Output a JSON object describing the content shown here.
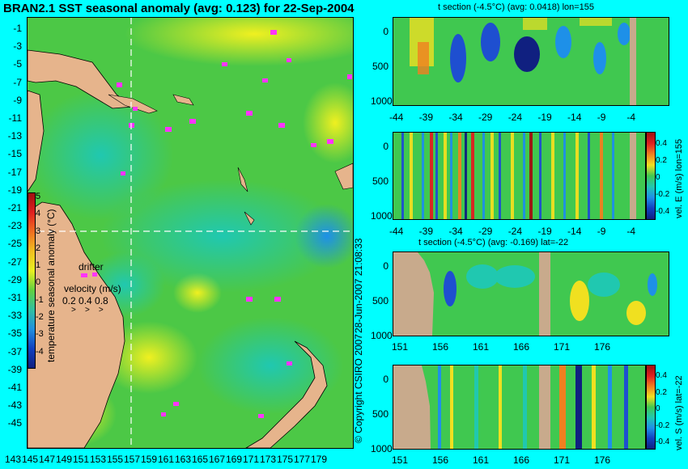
{
  "map": {
    "title": "BRAN2.1 SST seasonal anomaly (avg: 0.123) for 22-Sep-2004",
    "lat_labels": [
      "-1",
      "-3",
      "-5",
      "-7",
      "-9",
      "-11",
      "-13",
      "-15",
      "-17",
      "-19",
      "-21",
      "-23",
      "-25",
      "-27",
      "-29",
      "-31",
      "-33",
      "-35",
      "-37",
      "-39",
      "-41",
      "-43",
      "-45"
    ],
    "lon_labels": [
      "143",
      "145",
      "147",
      "149",
      "151",
      "153",
      "155",
      "157",
      "159",
      "161",
      "163",
      "165",
      "167",
      "169",
      "171",
      "173",
      "175",
      "177",
      "179"
    ],
    "colorbar_label": "temperature seasonal anomaly (°C)",
    "colorbar_ticks": [
      "5",
      "4",
      "3",
      "2",
      "1",
      "0",
      "-1",
      "-2",
      "-3",
      "-4"
    ],
    "drifter_label": "drifter",
    "velocity_title": "velocity (m/s)",
    "velocity_values": "0.2 0.4 0.8",
    "copyright": "© Copyright CSIRO 2007",
    "timestamp": "28-Jun-2007 21:08:33",
    "colors": {
      "background": "#00ffff",
      "land": "#e6b48c",
      "drifter": "#ff33ff",
      "ocean": "#3fc84a"
    }
  },
  "sections": {
    "top_title": "t section (-4.5°C) (avg: 0.0418) lon=155",
    "top_x_ticks": [
      "-44",
      "-39",
      "-34",
      "-29",
      "-24",
      "-19",
      "-14",
      "-9",
      "-4"
    ],
    "depth_ticks": [
      "0",
      "500",
      "1000"
    ],
    "velE_label": "vel. E (m/s) lon=155",
    "vel_ticks": [
      "0.4",
      "0.2",
      "0",
      "-0.2",
      "-0.4"
    ],
    "bottom_title": "t section (-4.5°C) (avg: -0.169) lat=-22",
    "bottom_x_ticks": [
      "151",
      "156",
      "161",
      "166",
      "171",
      "176"
    ],
    "velS_label": "vel. S (m/s) lat=-22"
  }
}
